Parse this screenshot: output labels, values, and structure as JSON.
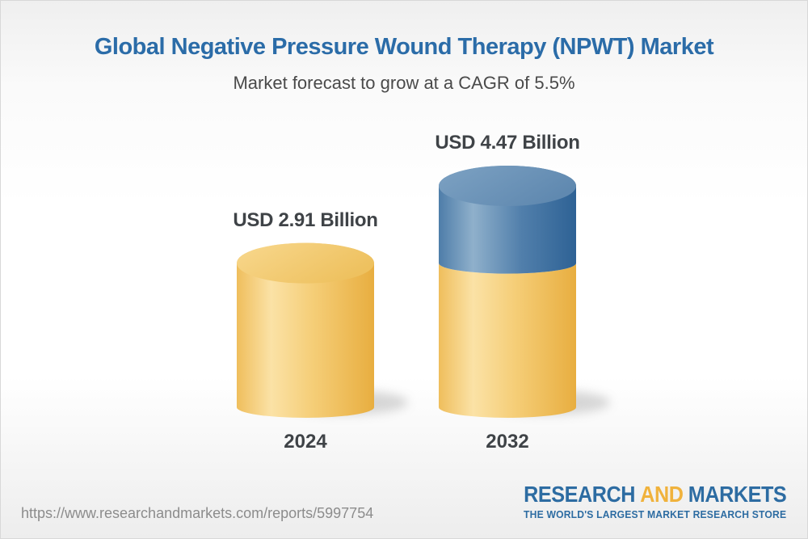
{
  "header": {
    "title": "Global Negative Pressure Wound Therapy (NPWT) Market",
    "subtitle": "Market forecast to grow at a CAGR of 5.5%"
  },
  "chart_data": {
    "type": "bar",
    "subtype": "3d-cylinder",
    "title": "Global Negative Pressure Wound Therapy (NPWT) Market",
    "subtitle": "Market forecast to grow at a CAGR of 5.5%",
    "categories": [
      "2024",
      "2032"
    ],
    "values": [
      2.91,
      4.47
    ],
    "value_labels": [
      "USD 2.91 Billion",
      "USD 4.47 Billion"
    ],
    "unit": "USD Billion",
    "cagr_percent": 5.5,
    "stacked_segments_2032": [
      {
        "name": "2024 base value",
        "value": 2.91,
        "color": "#F2C45F"
      },
      {
        "name": "forecast growth",
        "value": 1.56,
        "color": "#4E7FAC"
      }
    ],
    "ylim": [
      0,
      5
    ],
    "grid": false,
    "legend": false,
    "colors": {
      "base_segment": "#F2C45F",
      "growth_segment": "#4E7FAC",
      "label_text": "#3F4347",
      "title_text": "#2B6CA8"
    }
  },
  "footer": {
    "url": "https://www.researchandmarkets.com/reports/5997754",
    "logo": {
      "part1": "RESEARCH",
      "part2": "AND",
      "part3": "MARKETS",
      "tagline": "THE WORLD'S LARGEST MARKET RESEARCH STORE",
      "blue": "#2D6CA2",
      "gold": "#F0B23C"
    }
  }
}
